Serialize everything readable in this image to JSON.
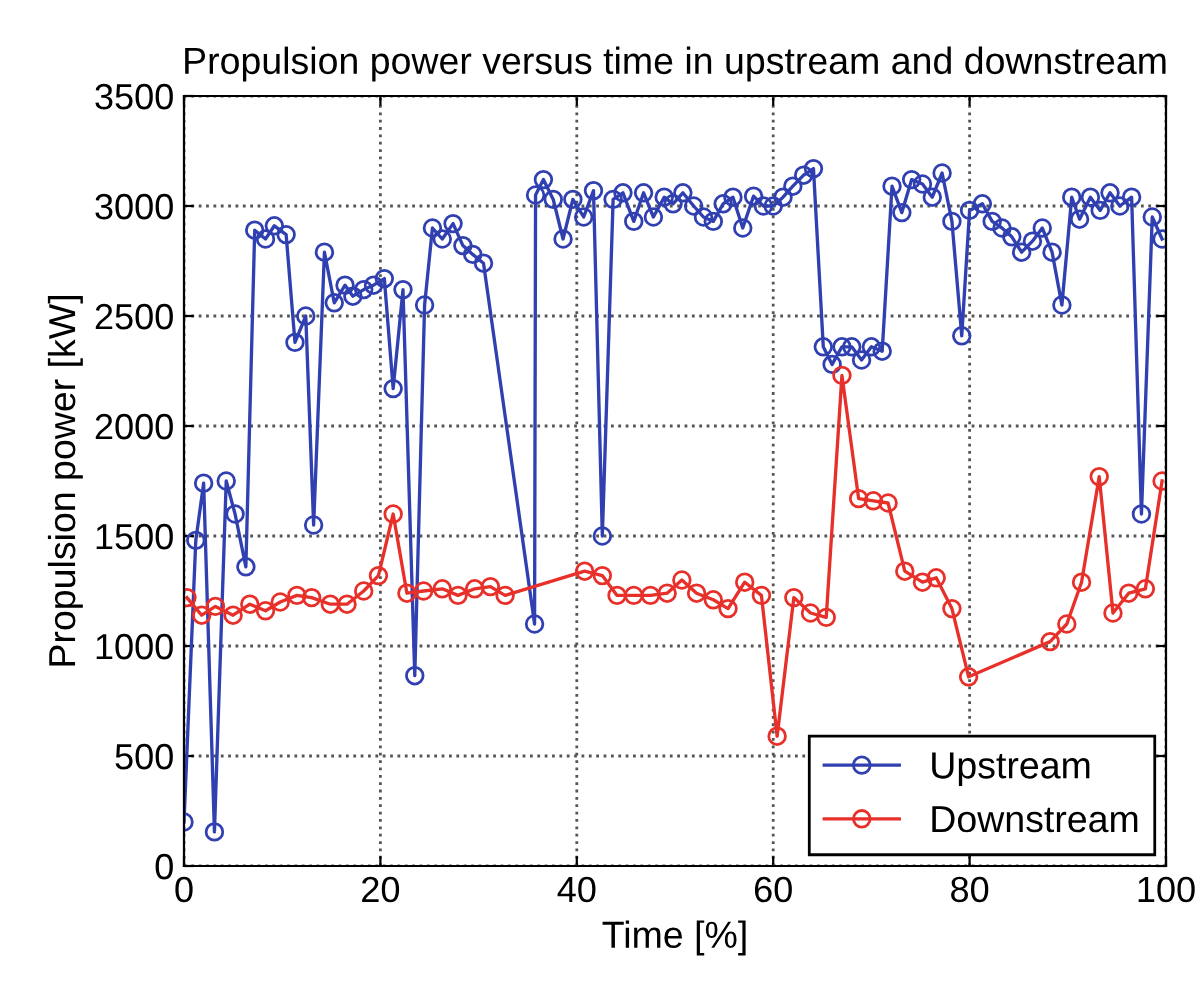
{
  "chart_data": {
    "type": "line",
    "title": "Propulsion power versus time in upstream and downstream",
    "xlabel": "Time [%]",
    "ylabel": "Propulsion power [kW]",
    "xlim": [
      0,
      100
    ],
    "xticks": [
      0,
      20,
      40,
      60,
      80,
      100
    ],
    "ylim": [
      0,
      3500
    ],
    "yticks": [
      0,
      500,
      1000,
      1500,
      2000,
      2500,
      3000,
      3500
    ],
    "grid": true,
    "legend": "bottom right",
    "marker": "circle",
    "line_style": "solid",
    "series": [
      {
        "name": "Upstream",
        "color": "#3040b0",
        "x": [
          0,
          1.2,
          2,
          3.1,
          4.3,
          5.2,
          6.3,
          7.2,
          8.3,
          9.2,
          10.4,
          11.3,
          12.4,
          13.2,
          14.3,
          15.3,
          16.4,
          17.2,
          18.3,
          19.3,
          20.4,
          21.3,
          22.3,
          23.5,
          24.5,
          25.3,
          26.3,
          27.4,
          28.4,
          29.4,
          30.5,
          35.7,
          35.8,
          36.6,
          37.6,
          38.6,
          39.6,
          40.7,
          41.7,
          42.6,
          43.7,
          44.7,
          45.8,
          46.8,
          47.8,
          48.9,
          49.8,
          50.8,
          51.9,
          52.9,
          53.9,
          54.9,
          55.9,
          56.9,
          58,
          59,
          60,
          61,
          62,
          63.1,
          64.1,
          65.1,
          66,
          67,
          68,
          69,
          70,
          71.1,
          72.1,
          73.1,
          74.1,
          75.2,
          76.2,
          77.2,
          78.2,
          79.2,
          80,
          81.3,
          82.3,
          83.3,
          84.3,
          85.3,
          86.4,
          87.4,
          88.4,
          89.4,
          90.4,
          91.2,
          92.3,
          93.3,
          94.3,
          95.3,
          96.5,
          97.5,
          98.6,
          99.6
        ],
        "values": [
          200,
          1480,
          1740,
          155,
          1750,
          1600,
          1360,
          2890,
          2850,
          2910,
          2870,
          2380,
          2500,
          1550,
          2790,
          2560,
          2640,
          2590,
          2620,
          2640,
          2670,
          2170,
          2620,
          865,
          2550,
          2900,
          2850,
          2920,
          2820,
          2780,
          2740,
          1100,
          3050,
          3120,
          3030,
          2850,
          3030,
          2950,
          3070,
          1500,
          3030,
          3060,
          2930,
          3060,
          2950,
          3040,
          3010,
          3060,
          3000,
          2950,
          2930,
          3010,
          3040,
          2900,
          3045,
          3000,
          3000,
          3040,
          3090,
          3140,
          3170,
          2360,
          2280,
          2360,
          2360,
          2300,
          2360,
          2340,
          3090,
          2970,
          3120,
          3100,
          3040,
          3150,
          2930,
          2410,
          2980,
          3010,
          2930,
          2900,
          2860,
          2790,
          2840,
          2900,
          2790,
          2550,
          3040,
          2940,
          3040,
          2980,
          3060,
          3000,
          3040,
          1600,
          2950,
          2850
        ]
      },
      {
        "name": "Downstream",
        "color": "#e8302a",
        "x": [
          0.3,
          1.8,
          3.2,
          5,
          6.7,
          8.3,
          9.8,
          11.5,
          13,
          14.9,
          16.6,
          18.3,
          19.8,
          21.3,
          22.7,
          24.4,
          26.3,
          27.9,
          29.6,
          31.2,
          32.7,
          40.8,
          42.6,
          44.1,
          45.8,
          47.5,
          49.2,
          50.7,
          52.2,
          53.9,
          55.4,
          57.1,
          58.8,
          60.4,
          62.1,
          63.8,
          65.4,
          67,
          68.7,
          70.2,
          71.7,
          73.4,
          75.2,
          76.6,
          78.2,
          79.9,
          88.2,
          89.9,
          91.4,
          93.2,
          94.6,
          96.2,
          97.9,
          99.6
        ],
        "values": [
          1220,
          1140,
          1180,
          1140,
          1190,
          1160,
          1200,
          1230,
          1220,
          1190,
          1190,
          1250,
          1320,
          1600,
          1240,
          1250,
          1260,
          1230,
          1260,
          1270,
          1230,
          1340,
          1320,
          1230,
          1230,
          1230,
          1240,
          1300,
          1240,
          1210,
          1170,
          1290,
          1230,
          590,
          1220,
          1150,
          1130,
          2230,
          1670,
          1660,
          1650,
          1340,
          1290,
          1310,
          1170,
          860,
          1020,
          1100,
          1290,
          1770,
          1150,
          1240,
          1260,
          1750
        ]
      }
    ]
  }
}
